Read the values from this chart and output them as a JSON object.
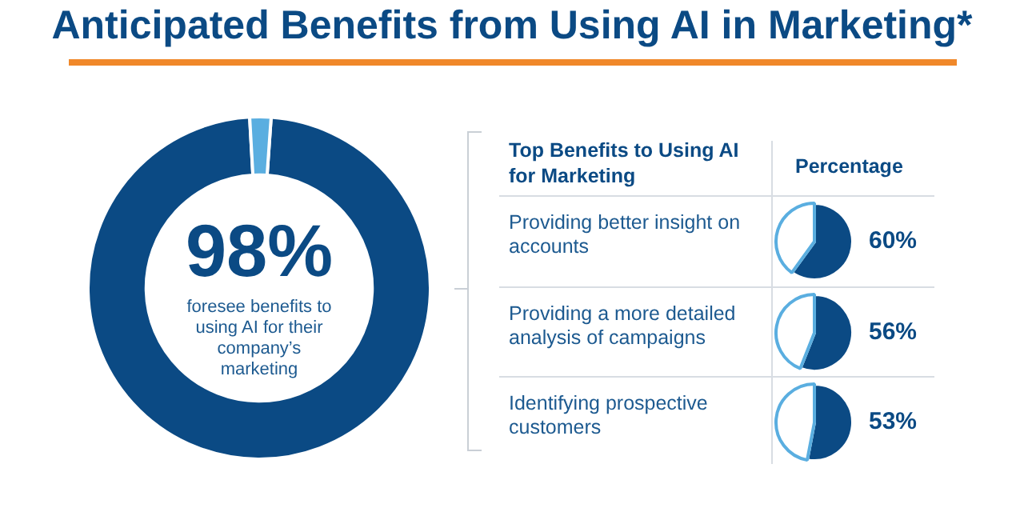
{
  "chart_data": [
    {
      "type": "donut",
      "title": "Anticipated Benefits from Using AI in Marketing*",
      "categories": [
        null,
        null
      ],
      "values": [
        98,
        2
      ],
      "colors": [
        "#0b4a84",
        "#5aaee0"
      ],
      "value_labels": [
        "98%",
        null
      ],
      "annotations": [
        "foresee benefits to using AI for their company’s marketing"
      ]
    },
    {
      "type": "other",
      "title": "Top Benefits to Using AI for Marketing",
      "annotations": [
        "Percentage"
      ]
    },
    {
      "type": "pie",
      "title": "Providing better insight on accounts",
      "categories": [
        null,
        null
      ],
      "values": [
        60,
        40
      ],
      "colors": [
        "#0b4a84",
        "#5aaee0"
      ],
      "value_labels": [
        "60%",
        null
      ]
    },
    {
      "type": "pie",
      "title": "Providing a more detailed analysis of campaigns",
      "categories": [
        null,
        null
      ],
      "values": [
        56,
        44
      ],
      "colors": [
        "#0b4a84",
        "#5aaee0"
      ],
      "value_labels": [
        "56%",
        null
      ]
    },
    {
      "type": "pie",
      "title": "Identifying prospective customers",
      "categories": [
        null,
        null
      ],
      "values": [
        53,
        47
      ],
      "colors": [
        "#0b4a84",
        "#5aaee0"
      ],
      "value_labels": [
        "53%",
        null
      ]
    }
  ]
}
